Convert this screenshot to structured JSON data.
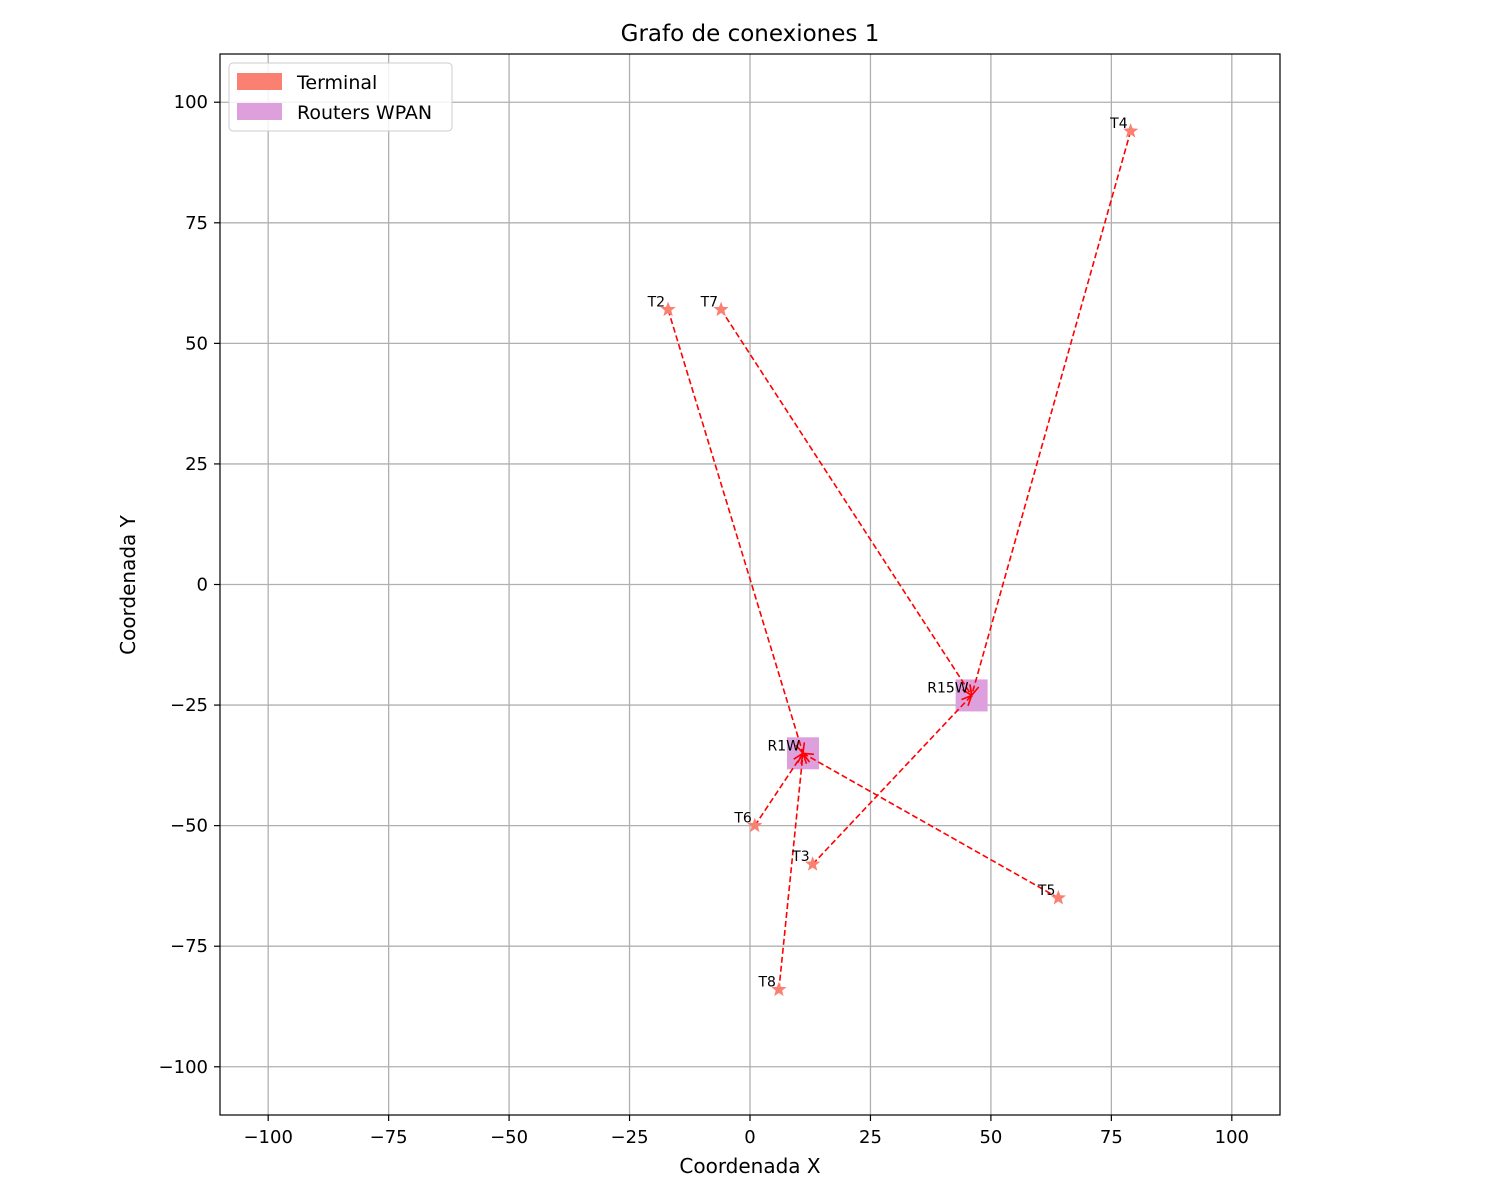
{
  "chart_data": {
    "type": "scatter",
    "title": "Grafo de conexiones 1",
    "xlabel": "Coordenada X",
    "ylabel": "Coordenada Y",
    "xlim": [
      -110,
      110
    ],
    "ylim": [
      -110,
      110
    ],
    "xticks": [
      -100,
      -75,
      -50,
      -25,
      0,
      25,
      50,
      75,
      100
    ],
    "yticks": [
      -100,
      -75,
      -50,
      -25,
      0,
      25,
      50,
      75,
      100
    ],
    "xtick_labels": [
      "−100",
      "−75",
      "−50",
      "−25",
      "0",
      "25",
      "50",
      "75",
      "100"
    ],
    "ytick_labels": [
      "−100",
      "−75",
      "−50",
      "−25",
      "0",
      "25",
      "50",
      "75",
      "100"
    ],
    "grid": true,
    "legend_position": "top-left",
    "legend": [
      {
        "label": "Terminal",
        "color": "#fa8072"
      },
      {
        "label": "Routers WPAN",
        "color": "#dda0dd"
      }
    ],
    "terminals": [
      {
        "label": "T2",
        "x": -17,
        "y": 57
      },
      {
        "label": "T3",
        "x": 13,
        "y": -58
      },
      {
        "label": "T4",
        "x": 79,
        "y": 94
      },
      {
        "label": "T5",
        "x": 64,
        "y": -65
      },
      {
        "label": "T6",
        "x": 1,
        "y": -50
      },
      {
        "label": "T7",
        "x": -6,
        "y": 57
      },
      {
        "label": "T8",
        "x": 6,
        "y": -84
      }
    ],
    "routers": [
      {
        "label": "R1W",
        "x": 11,
        "y": -35
      },
      {
        "label": "R15W",
        "x": 46,
        "y": -23
      }
    ],
    "connections": [
      {
        "from": "T2",
        "to": "R1W"
      },
      {
        "from": "T6",
        "to": "R1W"
      },
      {
        "from": "T8",
        "to": "R1W"
      },
      {
        "from": "T5",
        "to": "R1W"
      },
      {
        "from": "T7",
        "to": "R15W"
      },
      {
        "from": "T4",
        "to": "R15W"
      },
      {
        "from": "T3",
        "to": "R15W"
      }
    ],
    "colors": {
      "terminal": "#fa8072",
      "router": "#dda0dd",
      "edge": "#ff0000",
      "grid": "#b0b0b0"
    }
  }
}
